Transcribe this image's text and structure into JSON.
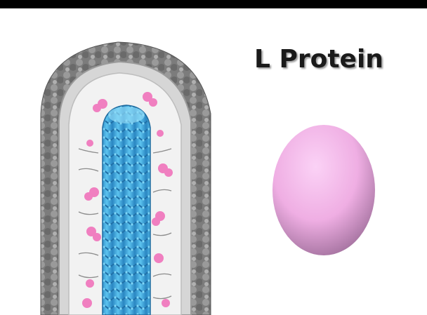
{
  "slide": {
    "title": "L Protein"
  },
  "colors": {
    "envelope_gray": "#8a8a8a",
    "membrane_light": "#d9d9d9",
    "nucleocapsid_blue": "#3aa6dc",
    "matrix_pink": "#f07fc0",
    "l_protein_pink": "#f4b6ea"
  },
  "icons": {
    "virion": "filovirus-cutaway-illustration",
    "l_protein": "l-protein-egg-shape"
  }
}
